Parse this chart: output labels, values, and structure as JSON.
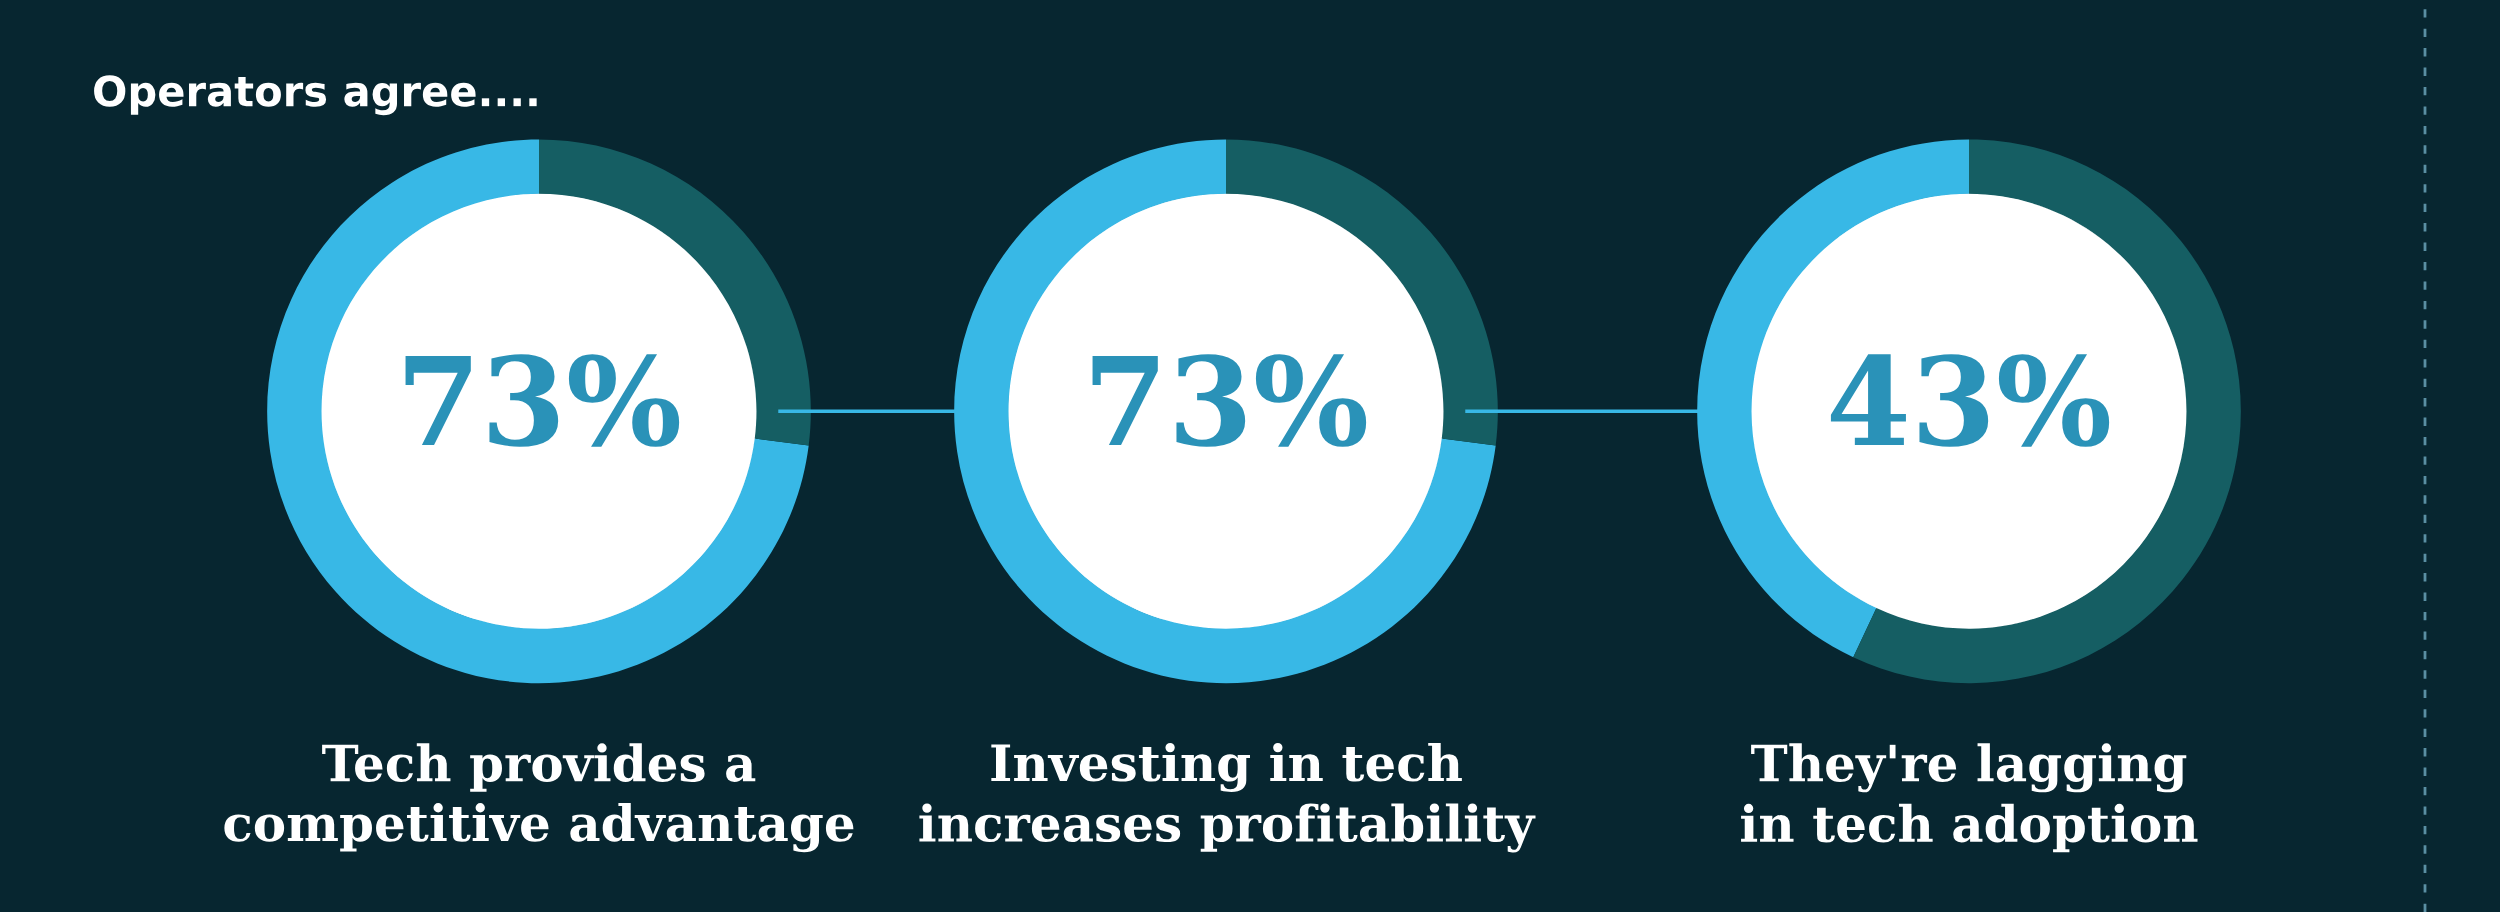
{
  "chart_data": [
    {
      "type": "donut",
      "title": "Operators agree....",
      "categories": [
        null,
        null
      ],
      "values": [
        73,
        27
      ],
      "colors": [
        "#38b8e6",
        "#155e63"
      ],
      "value_labels": [
        "73%",
        null
      ],
      "annotations": [
        "Tech provides a\ncompetitive advantage"
      ]
    },
    {
      "type": "donut",
      "categories": [
        null,
        null
      ],
      "values": [
        73,
        27
      ],
      "colors": [
        "#38b8e6",
        "#155e63"
      ],
      "value_labels": [
        "73%",
        null
      ],
      "annotations": [
        "Investing in tech\nincreases profitability"
      ]
    },
    {
      "type": "donut",
      "categories": [
        null,
        null
      ],
      "values": [
        43,
        57
      ],
      "colors": [
        "#38b8e6",
        "#155e63"
      ],
      "value_labels": [
        "43%",
        null
      ],
      "annotations": [
        "They're lagging\nin tech adoption"
      ]
    }
  ]
}
